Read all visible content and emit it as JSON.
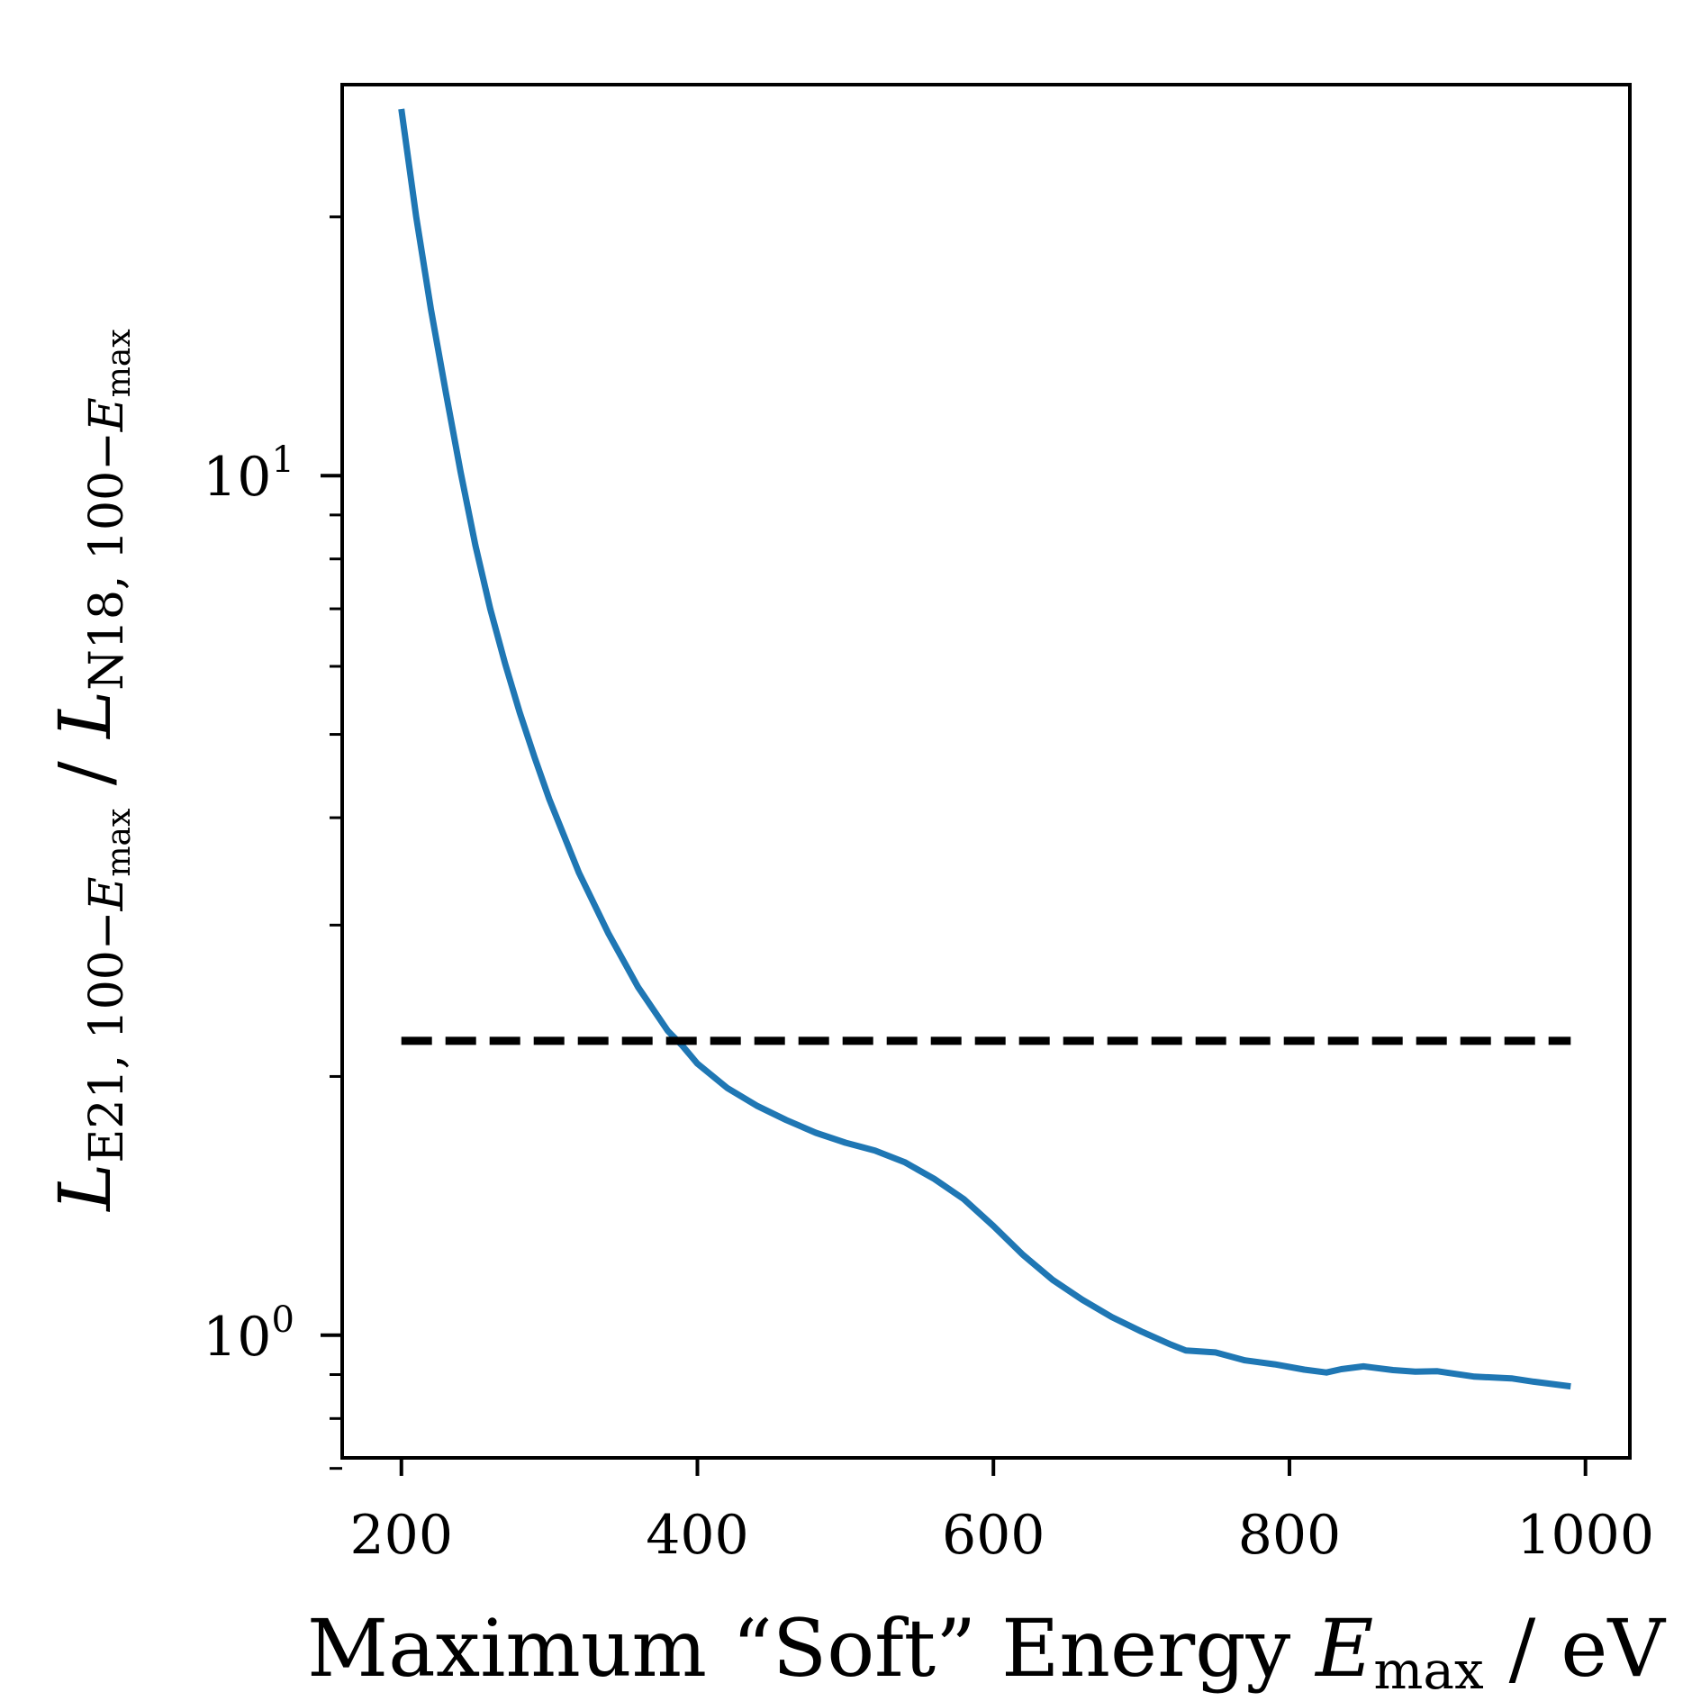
{
  "chart_data": {
    "type": "line",
    "xlabel": {
      "prefix": "Maximum “Soft” Energy ",
      "var": "E",
      "sub": "max",
      "suffix": " / eV"
    },
    "ylabel": {
      "num_var": "L",
      "num_sub": "E21, 100−",
      "num_sub_var": "E",
      "num_sub_sub": "max",
      "sep": " / ",
      "den_var": "L",
      "den_sub": "N18, 100−",
      "den_sub_var": "E",
      "den_sub_sub": "max"
    },
    "xlim": [
      160,
      1030
    ],
    "ylim": [
      0.72,
      28.5
    ],
    "yscale": "log",
    "x_ticks": [
      {
        "value": 200,
        "label": "200"
      },
      {
        "value": 400,
        "label": "400"
      },
      {
        "value": 600,
        "label": "600"
      },
      {
        "value": 800,
        "label": "800"
      },
      {
        "value": 1000,
        "label": "1000"
      }
    ],
    "y_major_ticks": [
      {
        "value": 1,
        "base": "10",
        "exp": "0"
      },
      {
        "value": 10,
        "base": "10",
        "exp": "1"
      }
    ],
    "y_minor_ticks": [
      0.7,
      0.8,
      0.9,
      2,
      3,
      4,
      5,
      6,
      7,
      8,
      9,
      20
    ],
    "series": [
      {
        "style": "solid",
        "color": "#1f77b4",
        "x": [
          200,
          210,
          220,
          230,
          240,
          250,
          260,
          270,
          280,
          290,
          300,
          320,
          340,
          360,
          380,
          390,
          400,
          420,
          440,
          460,
          480,
          500,
          520,
          540,
          560,
          580,
          600,
          620,
          640,
          660,
          680,
          700,
          720,
          730,
          750,
          770,
          790,
          810,
          825,
          835,
          850,
          870,
          885,
          900,
          925,
          950,
          965,
          990
        ],
        "y": [
          26.7,
          20.0,
          15.6,
          12.5,
          10.1,
          8.3,
          7.0,
          6.05,
          5.3,
          4.7,
          4.2,
          3.45,
          2.93,
          2.54,
          2.26,
          2.17,
          2.07,
          1.94,
          1.85,
          1.78,
          1.72,
          1.675,
          1.64,
          1.59,
          1.52,
          1.44,
          1.34,
          1.24,
          1.16,
          1.1,
          1.05,
          1.01,
          0.975,
          0.96,
          0.955,
          0.935,
          0.925,
          0.912,
          0.905,
          0.913,
          0.92,
          0.911,
          0.907,
          0.908,
          0.895,
          0.891,
          0.883,
          0.872
        ]
      },
      {
        "style": "dashed",
        "color": "#000000",
        "x": [
          200,
          990
        ],
        "y": [
          2.2,
          2.2
        ]
      }
    ],
    "grid": false,
    "legend": "none"
  }
}
